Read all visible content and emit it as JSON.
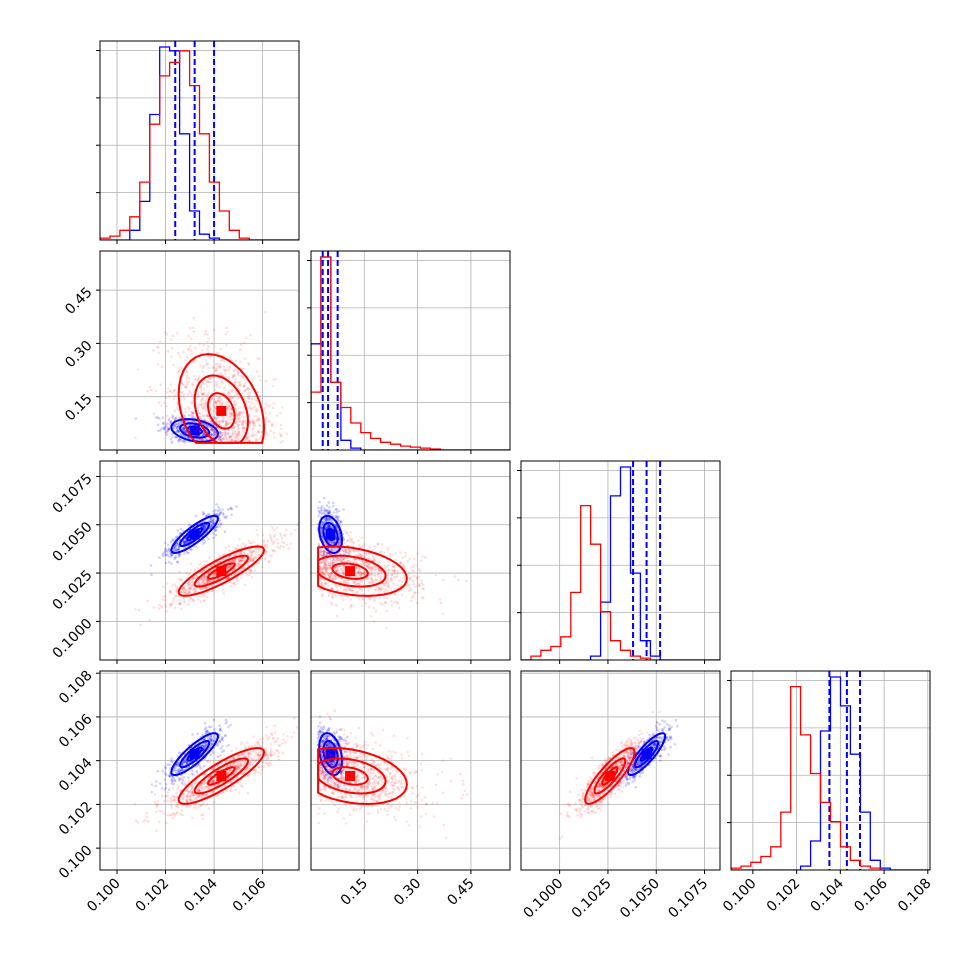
{
  "chart_data": {
    "type": "corner",
    "description_free": true,
    "variables": [
      {
        "ticks": [
          0.1,
          0.102,
          0.104,
          0.106
        ],
        "tick_labels": [
          "0.100",
          "0.102",
          "0.104",
          "0.106"
        ],
        "range": [
          0.0993,
          0.1075
        ]
      },
      {
        "ticks": [
          0.15,
          0.3,
          0.45
        ],
        "tick_labels": [
          "0.15",
          "0.30",
          "0.45"
        ],
        "range": [
          0.0,
          0.56
        ]
      },
      {
        "ticks": [
          0.1,
          0.1025,
          0.105,
          0.1075
        ],
        "tick_labels": [
          "0.1000",
          "0.1025",
          "0.1050",
          "0.1075"
        ],
        "range": [
          0.098,
          0.1083
        ]
      },
      {
        "ticks": [
          0.1,
          0.102,
          0.104,
          0.106,
          0.108
        ],
        "tick_labels": [
          "0.100",
          "0.102",
          "0.104",
          "0.106",
          "0.108"
        ],
        "range": [
          0.099,
          0.1081
        ]
      }
    ],
    "series": [
      {
        "color": "#0000ff",
        "means": [
          0.1032,
          0.055,
          0.1045,
          0.1043
        ],
        "sds": [
          0.0006,
          0.02,
          0.0006,
          0.0006
        ],
        "quantiles": [
          [
            0.1024,
            0.1032,
            0.104
          ],
          [
            0.033,
            0.048,
            0.075
          ],
          [
            0.1038,
            0.1045,
            0.1052
          ],
          [
            0.1035,
            0.1043,
            0.1049
          ]
        ],
        "hist_shapes": [
          [
            0,
            0,
            0,
            0.05,
            0.2,
            0.65,
            1.0,
            0.98,
            0.55,
            0.15,
            0.03,
            0.01,
            0,
            0,
            0,
            0,
            0,
            0,
            0,
            0
          ],
          [
            0.55,
            1.0,
            0.35,
            0.05,
            0.01,
            0,
            0,
            0,
            0,
            0,
            0,
            0,
            0,
            0,
            0,
            0,
            0,
            0,
            0,
            0
          ],
          [
            0,
            0,
            0,
            0,
            0,
            0,
            0,
            0.02,
            0.3,
            0.85,
            1.0,
            0.45,
            0.1,
            0.02,
            0,
            0,
            0,
            0,
            0,
            0
          ],
          [
            0,
            0,
            0,
            0,
            0,
            0,
            0,
            0.02,
            0.15,
            0.72,
            1.0,
            0.85,
            0.6,
            0.3,
            0.05,
            0.01,
            0,
            0,
            0,
            0
          ]
        ]
      },
      {
        "color": "#ff0000",
        "means": [
          0.1043,
          0.11,
          0.1026,
          0.1033
        ],
        "sds": [
          0.0011,
          0.1,
          0.0008,
          0.0008
        ],
        "quantiles": [],
        "hist_shapes": [
          [
            0.01,
            0.02,
            0.05,
            0.12,
            0.3,
            0.6,
            0.85,
            0.92,
            0.98,
            0.8,
            0.55,
            0.3,
            0.15,
            0.05,
            0.01,
            0,
            0,
            0,
            0,
            0
          ],
          [
            0.3,
            1.0,
            0.35,
            0.22,
            0.14,
            0.09,
            0.06,
            0.04,
            0.03,
            0.02,
            0.015,
            0.01,
            0.005,
            0,
            0,
            0,
            0,
            0,
            0,
            0
          ],
          [
            0,
            0.02,
            0.05,
            0.07,
            0.12,
            0.35,
            0.8,
            0.6,
            0.25,
            0.1,
            0.05,
            0.02,
            0.01,
            0,
            0,
            0,
            0,
            0,
            0,
            0
          ],
          [
            0.01,
            0.02,
            0.04,
            0.07,
            0.12,
            0.3,
            0.95,
            0.7,
            0.5,
            0.35,
            0.25,
            0.12,
            0.05,
            0.02,
            0.01,
            0,
            0,
            0,
            0,
            0
          ]
        ]
      }
    ],
    "grid": true,
    "title": "",
    "legend": "none"
  }
}
